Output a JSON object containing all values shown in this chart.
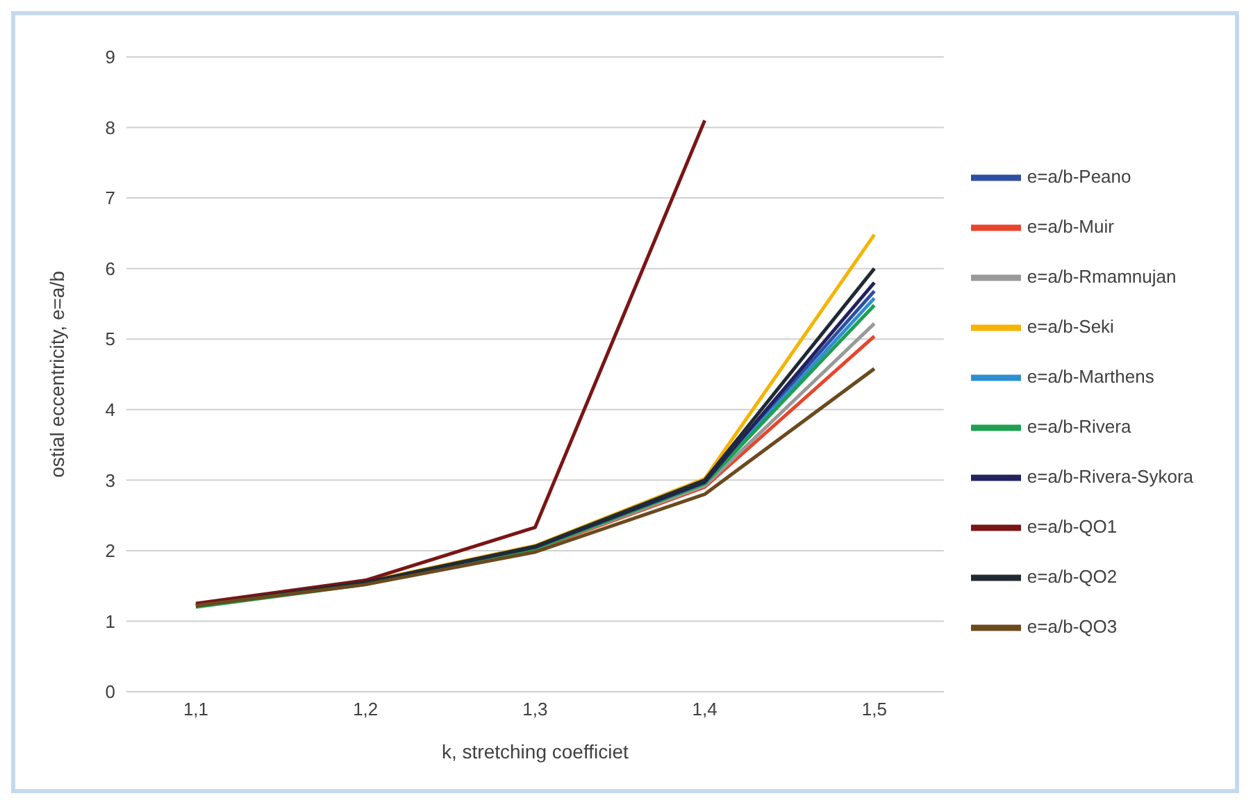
{
  "chart_data": {
    "type": "line",
    "xlabel": "k, stretching coefficiet",
    "ylabel": "ostial eccentricity, e=a/b",
    "categories": [
      "1,1",
      "1,2",
      "1,3",
      "1,4",
      "1,5"
    ],
    "ylim": [
      0,
      9
    ],
    "yticks": [
      0,
      1,
      2,
      3,
      4,
      5,
      6,
      7,
      8,
      9
    ],
    "grid": "y",
    "legend": "right",
    "marker": "none",
    "line_style": "solid",
    "series": [
      {
        "name": "e=a/b-Peano",
        "color": "#2e4fa3",
        "values": [
          null,
          null,
          null,
          2.98,
          5.68
        ]
      },
      {
        "name": "e=a/b-Muir",
        "color": "#e8452c",
        "values": [
          1.22,
          1.54,
          2.02,
          2.9,
          5.04
        ]
      },
      {
        "name": "e=a/b-Rmamnujan",
        "color": "#999999",
        "values": [
          1.22,
          1.54,
          2.03,
          2.92,
          5.22
        ]
      },
      {
        "name": "e=a/b-Seki",
        "color": "#f5b400",
        "values": [
          1.23,
          1.56,
          2.07,
          3.02,
          6.48
        ]
      },
      {
        "name": "e=a/b-Marthens",
        "color": "#2f8fd0",
        "values": [
          null,
          null,
          null,
          2.95,
          5.58
        ]
      },
      {
        "name": "e=a/b-Rivera",
        "color": "#1fa050",
        "values": [
          1.2,
          1.52,
          2.03,
          2.95,
          5.48
        ]
      },
      {
        "name": "e=a/b-Rivera-Sykora",
        "color": "#22225f",
        "values": [
          1.22,
          1.55,
          2.05,
          2.97,
          5.8
        ]
      },
      {
        "name": "e=a/b-QO1",
        "color": "#7a1515",
        "values": [
          1.25,
          1.58,
          2.33,
          8.1,
          null
        ]
      },
      {
        "name": "e=a/b-QO2",
        "color": "#1f2a33",
        "values": [
          1.22,
          1.55,
          2.06,
          3.0,
          6.0
        ]
      },
      {
        "name": "e=a/b-QO3",
        "color": "#6b4a1e",
        "values": [
          1.22,
          1.52,
          1.98,
          2.8,
          4.58
        ]
      }
    ]
  }
}
